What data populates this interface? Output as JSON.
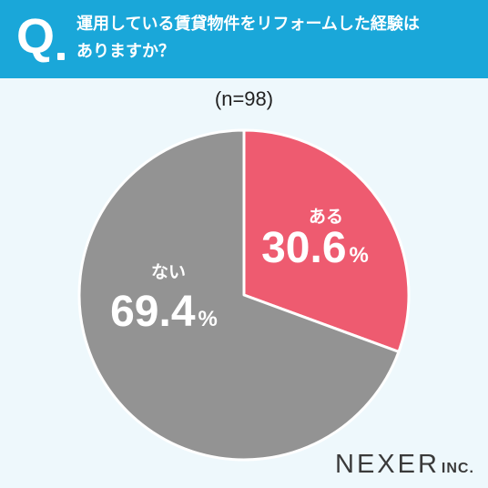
{
  "header": {
    "q_label": "Q",
    "question_line1": "運用している賃貸物件をリフォームした経験は",
    "question_line2": "ありますか？"
  },
  "sample_size": "(n=98)",
  "brand": {
    "main": "NEXER",
    "sub": "INC."
  },
  "colors": {
    "header_bg": "#1aa7d9",
    "page_bg": "#eef8fc",
    "yes_slice": "#ee5b70",
    "no_slice": "#939393"
  },
  "chart_data": {
    "type": "pie",
    "title": "",
    "slices": [
      {
        "label": "ある",
        "value": 30.6,
        "display": "30.6",
        "unit": "%",
        "color": "#ee5b70"
      },
      {
        "label": "ない",
        "value": 69.4,
        "display": "69.4",
        "unit": "%",
        "color": "#939393"
      }
    ]
  }
}
